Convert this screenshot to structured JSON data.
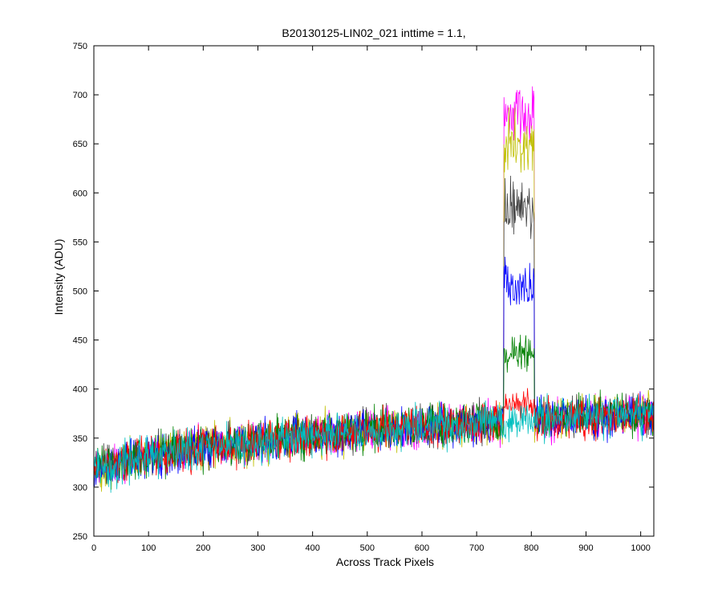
{
  "chart_data": {
    "type": "line",
    "title": "B20130125-LIN02_021 inttime = 1.1,",
    "xlabel": "Across Track Pixels",
    "ylabel": "Intensity (ADU)",
    "xlim": [
      0,
      1024
    ],
    "ylim": [
      250,
      750
    ],
    "xticks": [
      0,
      100,
      200,
      300,
      400,
      500,
      600,
      700,
      800,
      900,
      1000
    ],
    "yticks": [
      250,
      300,
      350,
      400,
      450,
      500,
      550,
      600,
      650,
      700,
      750
    ],
    "grid": false,
    "legend": "none",
    "baseline": {
      "x": [
        0,
        100,
        200,
        300,
        400,
        500,
        600,
        700,
        800,
        900,
        1024
      ],
      "y": [
        318,
        333,
        340,
        346,
        353,
        358,
        362,
        365,
        368,
        372,
        375
      ]
    },
    "noise_amplitude": 18,
    "series": [
      {
        "color": "#ff00ff",
        "peak": {
          "x_start": 750,
          "x_end": 805,
          "y": 680
        }
      },
      {
        "color": "#bfbf00",
        "peak": {
          "x_start": 750,
          "x_end": 805,
          "y": 650
        }
      },
      {
        "color": "#404040",
        "peak": {
          "x_start": 750,
          "x_end": 805,
          "y": 585
        }
      },
      {
        "color": "#0000ff",
        "peak": {
          "x_start": 750,
          "x_end": 805,
          "y": 505
        }
      },
      {
        "color": "#008000",
        "peak": {
          "x_start": 750,
          "x_end": 805,
          "y": 435
        }
      },
      {
        "color": "#ff0000",
        "peak": {
          "x_start": 750,
          "x_end": 805,
          "y": 385
        }
      },
      {
        "color": "#00bfbf",
        "peak": null
      }
    ]
  }
}
